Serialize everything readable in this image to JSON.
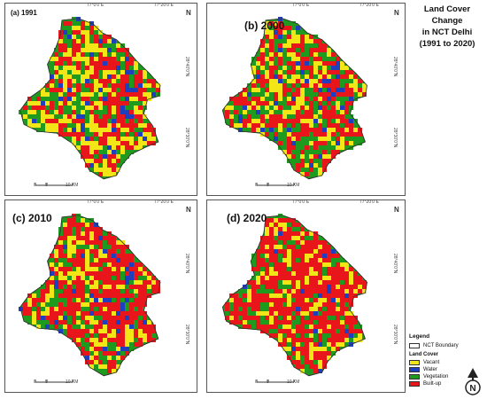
{
  "title_lines": [
    "Land Cover Change",
    "in NCT Delhi",
    "(1991 to 2020)"
  ],
  "panels": [
    {
      "label": "(a) 1991",
      "fill": [
        0.28,
        0.24,
        0.08,
        0.4
      ]
    },
    {
      "label": "(b) 2000",
      "fill": [
        0.32,
        0.34,
        0.06,
        0.28
      ]
    },
    {
      "label": "(c) 2010",
      "fill": [
        0.46,
        0.24,
        0.05,
        0.25
      ]
    },
    {
      "label": "(d) 2020",
      "fill": [
        0.56,
        0.18,
        0.04,
        0.22
      ]
    }
  ],
  "scale": {
    "ticks": [
      "0",
      "5",
      "10 KM"
    ]
  },
  "coords": {
    "top_left": "77°0'0\"E",
    "top_right": "77°20'0\"E",
    "side_upper": "28°40'0\"N",
    "side_lower": "28°30'0\"N"
  },
  "legend": {
    "heading": "Legend",
    "boundary_label": "NCT Boundary",
    "subheading": "Land Cover",
    "items": [
      {
        "label": "Vacant",
        "color": "#f2e616"
      },
      {
        "label": "Water",
        "color": "#1f3fbf"
      },
      {
        "label": "Vegetation",
        "color": "#1e9b1e"
      },
      {
        "label": "Built-up",
        "color": "#e8161b"
      }
    ]
  },
  "north_symbol": "N"
}
